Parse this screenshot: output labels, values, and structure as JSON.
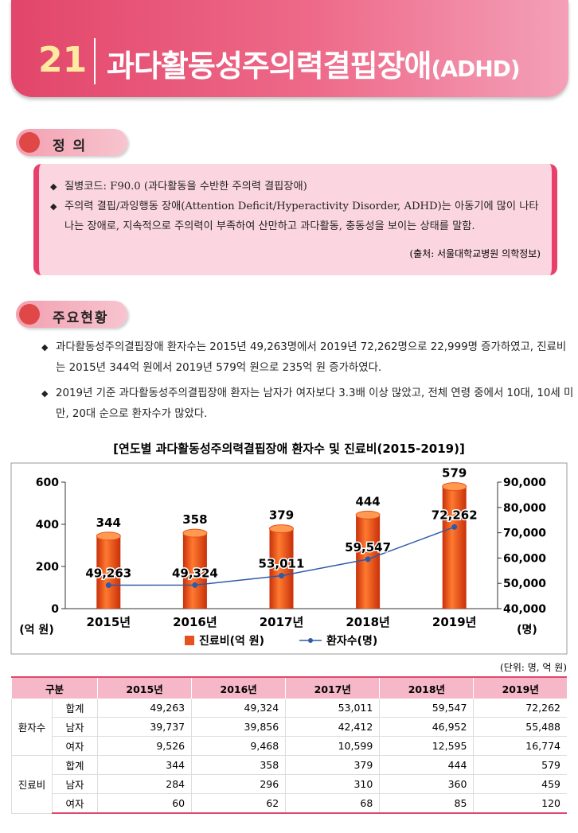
{
  "header": {
    "number": "21",
    "title": "과다활동성주의력결핍장애",
    "title_suffix": "(ADHD)"
  },
  "definition": {
    "heading": "정 의",
    "bullets": [
      "질병코드: F90.0 (과다활동을 수반한 주의력 결핍장애)",
      "주의력 결핍/과잉행동 장애(Attention Deficit/Hyperactivity Disorder, ADHD)는 아동기에 많이 나타나는 장애로, 지속적으로 주의력이 부족하여 산만하고 과다활동, 충동성을 보이는 상태를 말함."
    ],
    "source": "(출처: 서울대학교병원 의학정보)"
  },
  "status": {
    "heading": "주요현황",
    "bullets": [
      "과다활동성주의결핍장애 환자수는 2015년 49,263명에서 2019년 72,262명으로 22,999명 증가하였고, 진료비는 2015년 344억 원에서 2019년 579억 원으로 235억 원 증가하였다.",
      "2019년 기준 과다활동성주의결핍장애 환자는 남자가 여자보다 3.3배 이상 많았고, 전체 연령 중에서 10대, 10세 미만, 20대 순으로 환자수가 많았다."
    ]
  },
  "chart_data": {
    "type": "combo",
    "title": "[연도별 과다활동성주의력결핍장애 환자수 및 진료비(2015-2019)]",
    "categories": [
      "2015년",
      "2016년",
      "2017년",
      "2018년",
      "2019년"
    ],
    "series": [
      {
        "name": "진료비(억 원)",
        "type": "bar",
        "color": "#e8501e",
        "values": [
          344,
          358,
          379,
          444,
          579
        ]
      },
      {
        "name": "환자수(명)",
        "type": "line",
        "axis": "y2",
        "color": "#2e5aa8",
        "values": [
          49263,
          49324,
          53011,
          59547,
          72262
        ],
        "value_labels": [
          "49,263",
          "49,324",
          "53,011",
          "59,547",
          "72,262"
        ]
      }
    ],
    "ylim": [
      0,
      600
    ],
    "yticks": [
      0,
      200,
      400,
      600
    ],
    "y_label": "(억 원)",
    "y2lim": [
      40000,
      90000
    ],
    "y2ticks": [
      {
        "value": 40000,
        "label": "40,000"
      },
      {
        "value": 50000,
        "label": "50,000"
      },
      {
        "value": 60000,
        "label": "60,000"
      },
      {
        "value": 70000,
        "label": "70,000"
      },
      {
        "value": 80000,
        "label": "80,000"
      },
      {
        "value": 90000,
        "label": "90,000"
      }
    ],
    "y2_label": "(명)",
    "grid": false
  },
  "table": {
    "unit": "(단위: 명, 억 원)",
    "header": [
      "구분",
      "2015년",
      "2016년",
      "2017년",
      "2018년",
      "2019년"
    ],
    "groups": [
      {
        "name": "환자수",
        "rows": [
          {
            "label": "합계",
            "cells": [
              "49,263",
              "49,324",
              "53,011",
              "59,547",
              "72,262"
            ]
          },
          {
            "label": "남자",
            "cells": [
              "39,737",
              "39,856",
              "42,412",
              "46,952",
              "55,488"
            ]
          },
          {
            "label": "여자",
            "cells": [
              "9,526",
              "9,468",
              "10,599",
              "12,595",
              "16,774"
            ]
          }
        ]
      },
      {
        "name": "진료비",
        "rows": [
          {
            "label": "합계",
            "cells": [
              "344",
              "358",
              "379",
              "444",
              "579"
            ]
          },
          {
            "label": "남자",
            "cells": [
              "284",
              "296",
              "310",
              "360",
              "459"
            ]
          },
          {
            "label": "여자",
            "cells": [
              "60",
              "62",
              "68",
              "85",
              "120"
            ]
          }
        ]
      }
    ]
  }
}
